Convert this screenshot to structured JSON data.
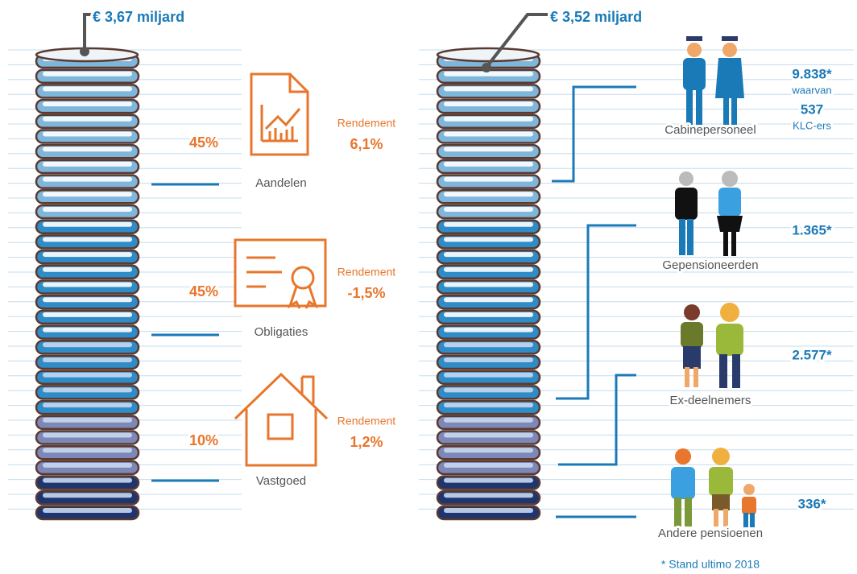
{
  "left": {
    "total": "€ 3,67 miljard",
    "assets": [
      {
        "share": "45%",
        "name": "Aandelen",
        "return_label": "Rendement",
        "return": "6,1%"
      },
      {
        "share": "45%",
        "name": "Obligaties",
        "return_label": "Rendement",
        "return": "-1,5%"
      },
      {
        "share": "10%",
        "name": "Vastgoed",
        "return_label": "Rendement",
        "return": "1,2%"
      }
    ]
  },
  "right": {
    "total": "€ 3,52 miljard",
    "groups": [
      {
        "name": "Cabinepersoneel",
        "count": "9.838*",
        "note": "waarvan",
        "sub_count": "537",
        "sub_label": "KLC-ers"
      },
      {
        "name": "Gepensioneerden",
        "count": "1.365*"
      },
      {
        "name": "Ex-deelnemers",
        "count": "2.577*"
      },
      {
        "name": "Andere pensioenen",
        "count": "336*"
      }
    ],
    "footnote": "* Stand ultimo 2018"
  }
}
